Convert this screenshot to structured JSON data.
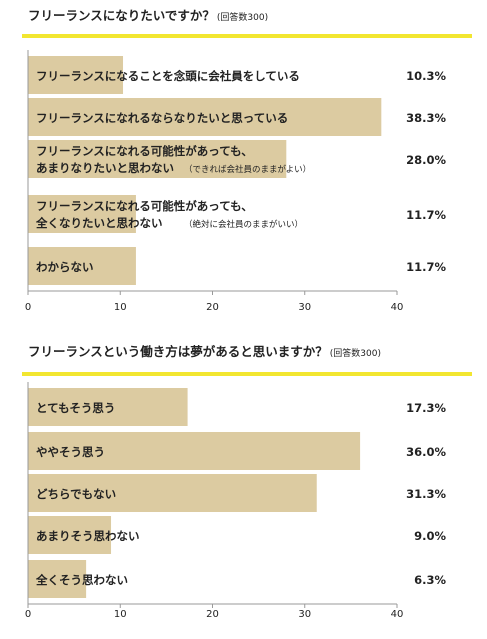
{
  "colors": {
    "bar": "#dccba1",
    "accent": "#f2e630",
    "axis": "#999999",
    "text": "#222222"
  },
  "chart_data": [
    {
      "type": "bar",
      "orientation": "horizontal",
      "title": "フリーランスになりたいですか？",
      "subtitle": "(回答数300)",
      "categories": [
        [
          "フリーランスになることを念頭に会社員をしている"
        ],
        [
          "フリーランスになれるならなりたいと思っている"
        ],
        [
          "フリーランスになれる可能性があっても、",
          "あまりなりたいと思わない",
          "（できれば会社員のままがよい）"
        ],
        [
          "フリーランスになれる可能性があっても、",
          "全くなりたいと思わない",
          "（絶対に会社員のままがいい）"
        ],
        [
          "わからない"
        ]
      ],
      "values": [
        10.3,
        38.3,
        28.0,
        11.7,
        11.7
      ],
      "value_labels": [
        "10.3%",
        "38.3%",
        "28.0%",
        "11.7%",
        "11.7%"
      ],
      "xlim": [
        0,
        40
      ],
      "xticks": [
        "0",
        "10",
        "20",
        "30",
        "40"
      ],
      "grid": false
    },
    {
      "type": "bar",
      "orientation": "horizontal",
      "title": "フリーランスという働き方は夢があると思いますか？",
      "subtitle": "(回答数300)",
      "categories": [
        [
          "とてもそう思う"
        ],
        [
          "ややそう思う"
        ],
        [
          "どちらでもない"
        ],
        [
          "あまりそう思わない"
        ],
        [
          "全くそう思わない"
        ]
      ],
      "values": [
        17.3,
        36.0,
        31.3,
        9.0,
        6.3
      ],
      "value_labels": [
        "17.3%",
        "36.0%",
        "31.3%",
        "9.0%",
        "6.3%"
      ],
      "xlim": [
        0,
        40
      ],
      "xticks": [
        "0",
        "10",
        "20",
        "30",
        "40"
      ],
      "grid": false
    }
  ]
}
